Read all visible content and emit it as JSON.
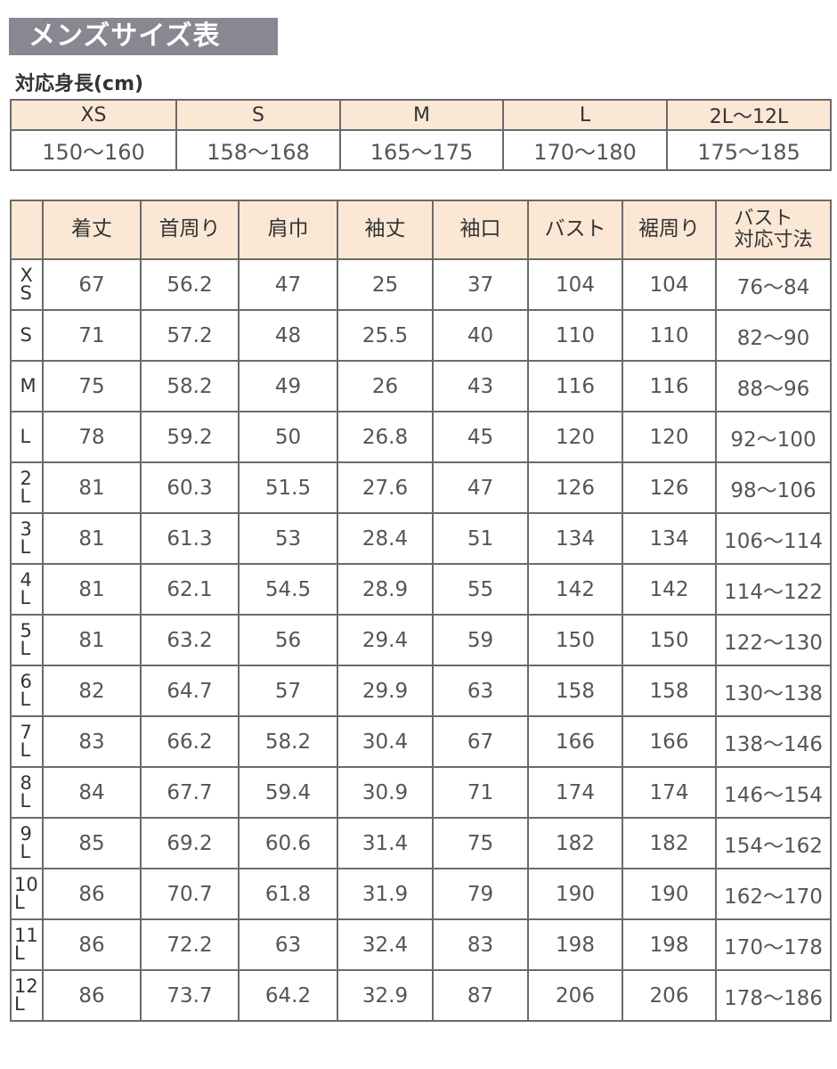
{
  "title": "メンズサイズ表",
  "subtitle": "対応身長(cm)",
  "height_table": {
    "sizes": [
      "XS",
      "S",
      "M",
      "L",
      "2L〜12L"
    ],
    "heights": [
      "150〜160",
      "158〜168",
      "165〜175",
      "170〜180",
      "175〜185"
    ]
  },
  "size_table": {
    "headers": [
      "着丈",
      "首周り",
      "肩巾",
      "袖丈",
      "袖口",
      "バスト",
      "裾周り"
    ],
    "bust_header_line1": "バスト",
    "bust_header_line2": "対応寸法",
    "rows": [
      {
        "size": "XS",
        "values": [
          "67",
          "56.2",
          "47",
          "25",
          "37",
          "104",
          "104",
          "76〜84"
        ]
      },
      {
        "size": "S",
        "values": [
          "71",
          "57.2",
          "48",
          "25.5",
          "40",
          "110",
          "110",
          "82〜90"
        ]
      },
      {
        "size": "M",
        "values": [
          "75",
          "58.2",
          "49",
          "26",
          "43",
          "116",
          "116",
          "88〜96"
        ]
      },
      {
        "size": "L",
        "values": [
          "78",
          "59.2",
          "50",
          "26.8",
          "45",
          "120",
          "120",
          "92〜100"
        ]
      },
      {
        "size": "2L",
        "values": [
          "81",
          "60.3",
          "51.5",
          "27.6",
          "47",
          "126",
          "126",
          "98〜106"
        ]
      },
      {
        "size": "3L",
        "values": [
          "81",
          "61.3",
          "53",
          "28.4",
          "51",
          "134",
          "134",
          "106〜114"
        ]
      },
      {
        "size": "4L",
        "values": [
          "81",
          "62.1",
          "54.5",
          "28.9",
          "55",
          "142",
          "142",
          "114〜122"
        ]
      },
      {
        "size": "5L",
        "values": [
          "81",
          "63.2",
          "56",
          "29.4",
          "59",
          "150",
          "150",
          "122〜130"
        ]
      },
      {
        "size": "6L",
        "values": [
          "82",
          "64.7",
          "57",
          "29.9",
          "63",
          "158",
          "158",
          "130〜138"
        ]
      },
      {
        "size": "7L",
        "values": [
          "83",
          "66.2",
          "58.2",
          "30.4",
          "67",
          "166",
          "166",
          "138〜146"
        ]
      },
      {
        "size": "8L",
        "values": [
          "84",
          "67.7",
          "59.4",
          "30.9",
          "71",
          "174",
          "174",
          "146〜154"
        ]
      },
      {
        "size": "9L",
        "values": [
          "85",
          "69.2",
          "60.6",
          "31.4",
          "75",
          "182",
          "182",
          "154〜162"
        ]
      },
      {
        "size": "10L",
        "values": [
          "86",
          "70.7",
          "61.8",
          "31.9",
          "79",
          "190",
          "190",
          "162〜170"
        ]
      },
      {
        "size": "11L",
        "values": [
          "86",
          "72.2",
          "63",
          "32.4",
          "83",
          "198",
          "198",
          "170〜178"
        ]
      },
      {
        "size": "12L",
        "values": [
          "86",
          "73.7",
          "64.2",
          "32.9",
          "87",
          "206",
          "206",
          "178〜186"
        ]
      }
    ]
  },
  "colors": {
    "title_bg": "#8a8792",
    "header_bg": "#fbe8d4",
    "border": "#6a6a6a"
  }
}
